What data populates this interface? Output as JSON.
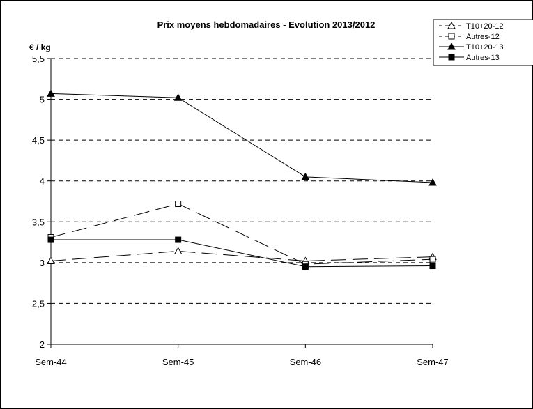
{
  "chart_data": {
    "type": "line",
    "title": "Prix moyens hebdomadaires - Evolution  2013/2012",
    "xlabel": "",
    "ylabel": "€ / kg",
    "categories": [
      "Sem-44",
      "Sem-45",
      "Sem-46",
      "Sem-47"
    ],
    "ylim": [
      2,
      5.5
    ],
    "yticks": [
      "2",
      "2,5",
      "3",
      "3,5",
      "4",
      "4,5",
      "5",
      "5,5"
    ],
    "grid": true,
    "legend_position": "top-right",
    "series": [
      {
        "name": "T10+20-12",
        "values": [
          3.02,
          3.14,
          3.02,
          3.07
        ],
        "marker": "triangle-open",
        "line": "dashed"
      },
      {
        "name": "Autres-12",
        "values": [
          3.31,
          3.72,
          2.98,
          3.04
        ],
        "marker": "square-open",
        "line": "dashed"
      },
      {
        "name": "T10+20-13",
        "values": [
          5.07,
          5.02,
          4.05,
          3.98
        ],
        "marker": "triangle-filled",
        "line": "solid"
      },
      {
        "name": "Autres-13",
        "values": [
          3.28,
          3.28,
          2.95,
          2.96
        ],
        "marker": "square-filled",
        "line": "solid"
      }
    ]
  }
}
